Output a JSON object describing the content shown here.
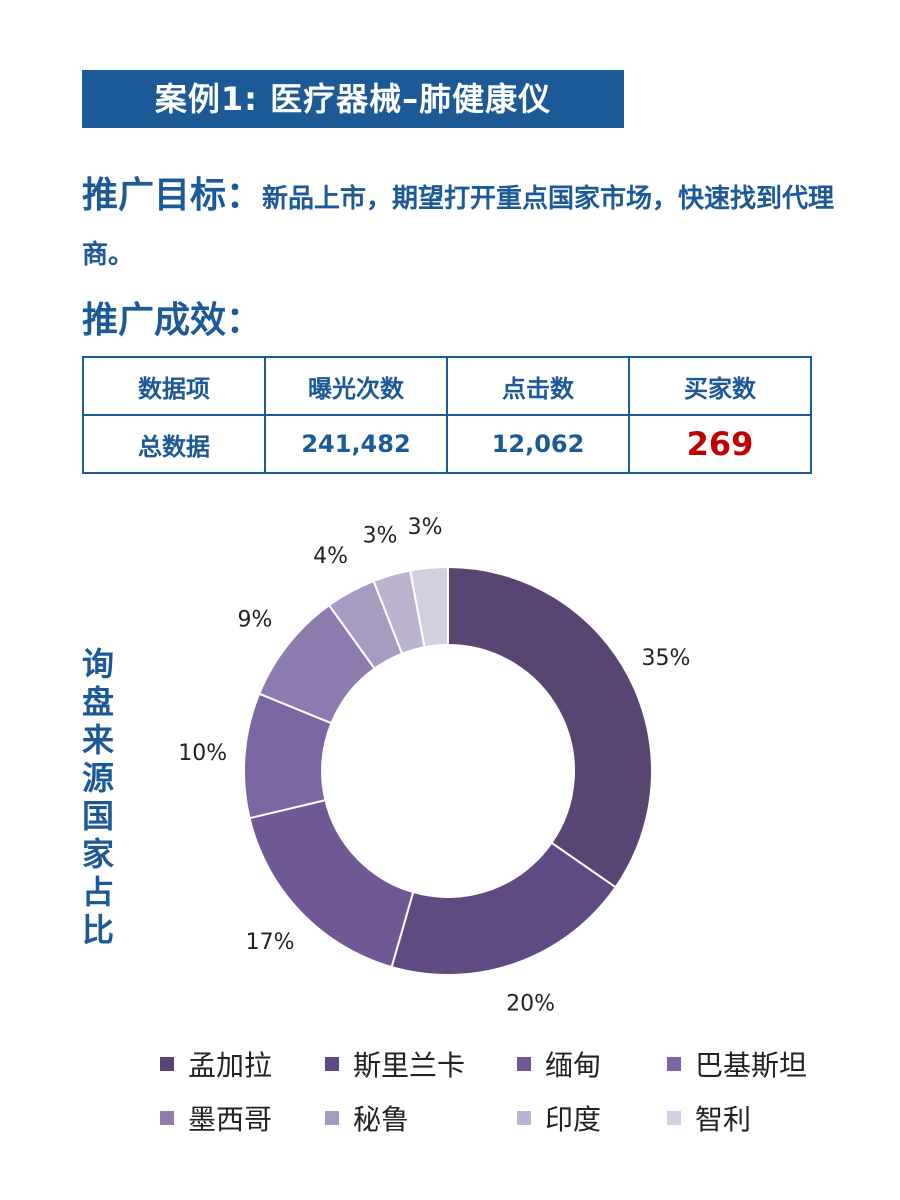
{
  "title": "案例1: 医疗器械–肺健康仪",
  "goal": {
    "label": "推广目标：",
    "text": "新品上市，期望打开重点国家市场，快速找到代理商。"
  },
  "results_heading": "推广成效：",
  "table": {
    "headers": [
      "数据项",
      "曝光次数",
      "点击数",
      "买家数"
    ],
    "row": [
      "总数据",
      "241,482",
      "12,062",
      "269"
    ],
    "highlight_color": "#c00000"
  },
  "side_label": "询盘来源国家占比",
  "chart_data": {
    "type": "pie",
    "style": "donut",
    "categories": [
      "孟加拉",
      "斯里兰卡",
      "缅甸",
      "巴基斯坦",
      "墨西哥",
      "秘鲁",
      "印度",
      "智利"
    ],
    "values": [
      35,
      20,
      17,
      10,
      9,
      4,
      3,
      3
    ],
    "labels": [
      "35%",
      "20%",
      "17%",
      "10%",
      "9%",
      "4%",
      "3%",
      "3%"
    ],
    "colors": [
      "#594572",
      "#5f4b82",
      "#6f5894",
      "#7b65a3",
      "#8e7cb0",
      "#a89bc2",
      "#bcb2d1",
      "#d4cfe0"
    ],
    "legend_position": "bottom"
  }
}
